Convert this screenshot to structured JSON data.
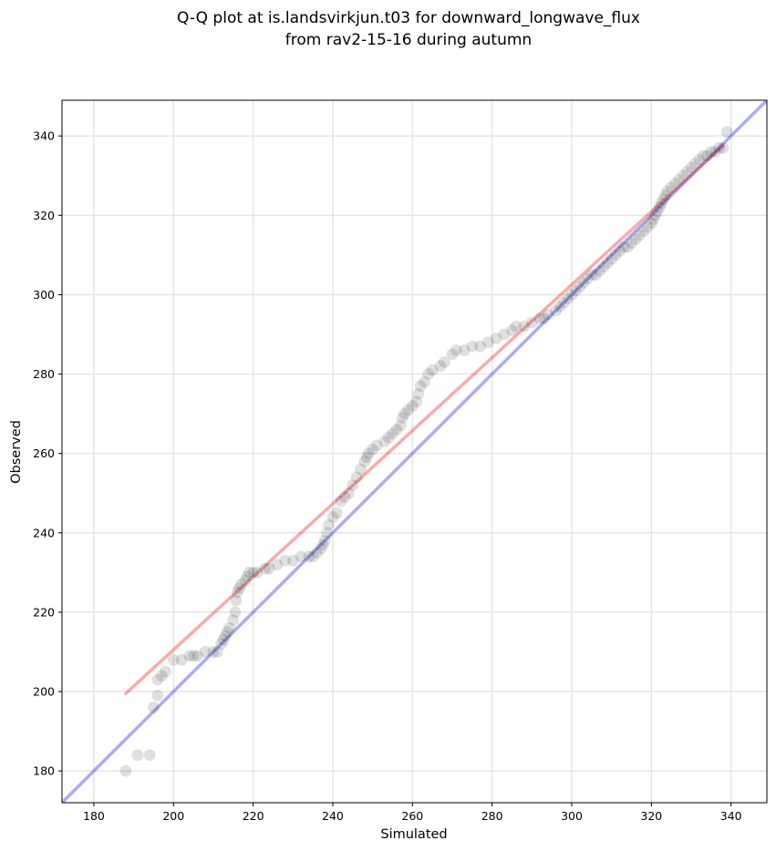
{
  "chart_data": {
    "type": "scatter",
    "title": [
      "Q-Q plot at is.landsvirkjun.t03 for downward_longwave_flux",
      "from rav2-15-16 during autumn"
    ],
    "xlabel": "Simulated",
    "ylabel": "Observed",
    "xlim": [
      172,
      349
    ],
    "ylim": [
      172,
      349
    ],
    "grid": true,
    "xticks": [
      180,
      200,
      220,
      240,
      260,
      280,
      300,
      320,
      340
    ],
    "yticks": [
      180,
      200,
      220,
      240,
      260,
      280,
      300,
      320,
      340
    ],
    "colors": {
      "points": "#000000",
      "reference_line": "#0000ee",
      "fit_line": "#ee0000",
      "grid": "#e6e6e6",
      "highlight": "#1a1a80"
    },
    "series": [
      {
        "name": "quantiles",
        "points": [
          [
            188,
            180
          ],
          [
            191,
            184
          ],
          [
            194,
            184
          ],
          [
            195,
            196
          ],
          [
            196,
            199
          ],
          [
            196,
            203
          ],
          [
            197,
            204
          ],
          [
            198,
            205
          ],
          [
            200,
            208
          ],
          [
            202,
            208
          ],
          [
            204,
            209
          ],
          [
            205,
            209
          ],
          [
            206,
            209
          ],
          [
            208,
            210
          ],
          [
            210,
            210
          ],
          [
            211,
            210
          ],
          [
            212,
            212
          ],
          [
            212.5,
            213
          ],
          [
            213,
            214
          ],
          [
            213.5,
            215
          ],
          [
            214,
            216
          ],
          [
            215,
            218
          ],
          [
            215.5,
            220
          ],
          [
            215.7,
            223
          ],
          [
            216,
            225
          ],
          [
            216.5,
            226
          ],
          [
            217,
            227
          ],
          [
            218,
            228
          ],
          [
            218.5,
            229
          ],
          [
            219,
            230
          ],
          [
            220,
            230
          ],
          [
            221,
            230
          ],
          [
            223,
            231
          ],
          [
            224,
            231
          ],
          [
            226,
            232
          ],
          [
            228,
            233
          ],
          [
            230,
            233
          ],
          [
            232,
            234
          ],
          [
            234,
            234
          ],
          [
            235,
            234
          ],
          [
            236,
            235
          ],
          [
            237,
            236
          ],
          [
            237.5,
            237
          ],
          [
            238,
            238
          ],
          [
            238.5,
            240
          ],
          [
            239,
            242
          ],
          [
            240,
            244
          ],
          [
            241,
            245
          ],
          [
            242,
            248
          ],
          [
            243,
            249
          ],
          [
            244,
            250
          ],
          [
            245,
            252
          ],
          [
            246,
            254
          ],
          [
            247,
            256
          ],
          [
            248,
            258
          ],
          [
            248.5,
            259
          ],
          [
            249,
            260
          ],
          [
            250,
            261
          ],
          [
            251,
            262
          ],
          [
            253,
            263
          ],
          [
            254,
            264
          ],
          [
            255,
            265
          ],
          [
            256,
            266
          ],
          [
            257,
            267
          ],
          [
            257.5,
            269
          ],
          [
            258,
            270
          ],
          [
            259,
            271
          ],
          [
            260,
            272
          ],
          [
            261,
            273
          ],
          [
            261.5,
            275
          ],
          [
            262,
            277
          ],
          [
            263,
            278
          ],
          [
            264,
            280
          ],
          [
            265,
            281
          ],
          [
            267,
            282
          ],
          [
            268,
            283
          ],
          [
            270,
            285
          ],
          [
            271,
            286
          ],
          [
            273,
            286
          ],
          [
            275,
            287
          ],
          [
            277,
            287
          ],
          [
            279,
            288
          ],
          [
            281,
            289
          ],
          [
            283,
            290
          ],
          [
            285,
            291
          ],
          [
            286,
            292
          ],
          [
            288,
            292
          ],
          [
            290,
            293
          ],
          [
            292,
            294
          ],
          [
            293,
            294
          ],
          [
            294,
            295
          ],
          [
            296,
            296
          ],
          [
            297,
            297
          ],
          [
            298,
            298
          ],
          [
            299,
            299
          ],
          [
            300,
            300
          ],
          [
            301,
            301
          ],
          [
            302,
            302
          ],
          [
            303,
            303
          ],
          [
            304,
            304
          ],
          [
            305,
            305
          ],
          [
            306,
            305
          ],
          [
            307,
            306
          ],
          [
            308,
            307
          ],
          [
            309,
            308
          ],
          [
            310,
            309
          ],
          [
            311,
            310
          ],
          [
            312,
            311
          ],
          [
            313,
            312
          ],
          [
            314,
            312
          ],
          [
            315,
            313
          ],
          [
            316,
            314
          ],
          [
            317,
            315
          ],
          [
            318,
            316
          ],
          [
            319,
            317
          ],
          [
            320,
            318
          ],
          [
            320.5,
            319
          ],
          [
            321,
            320
          ],
          [
            321.5,
            321
          ],
          [
            322,
            322
          ],
          [
            322.5,
            323
          ],
          [
            323,
            324
          ],
          [
            323.5,
            325
          ],
          [
            324,
            326
          ],
          [
            325,
            327
          ],
          [
            326,
            328
          ],
          [
            327,
            329
          ],
          [
            328,
            330
          ],
          [
            329,
            331
          ],
          [
            330,
            332
          ],
          [
            331,
            333
          ],
          [
            332,
            334
          ],
          [
            333,
            335
          ],
          [
            334,
            335
          ],
          [
            335,
            336
          ],
          [
            336,
            336
          ],
          [
            337,
            337
          ],
          [
            338,
            337
          ],
          [
            339,
            341
          ]
        ]
      }
    ],
    "reference_line": {
      "name": "y = x",
      "points": [
        [
          172,
          172
        ],
        [
          349,
          349
        ]
      ]
    },
    "fit_line": {
      "name": "fit",
      "points": [
        [
          188,
          199.5
        ],
        [
          338,
          337.5
        ]
      ]
    }
  }
}
